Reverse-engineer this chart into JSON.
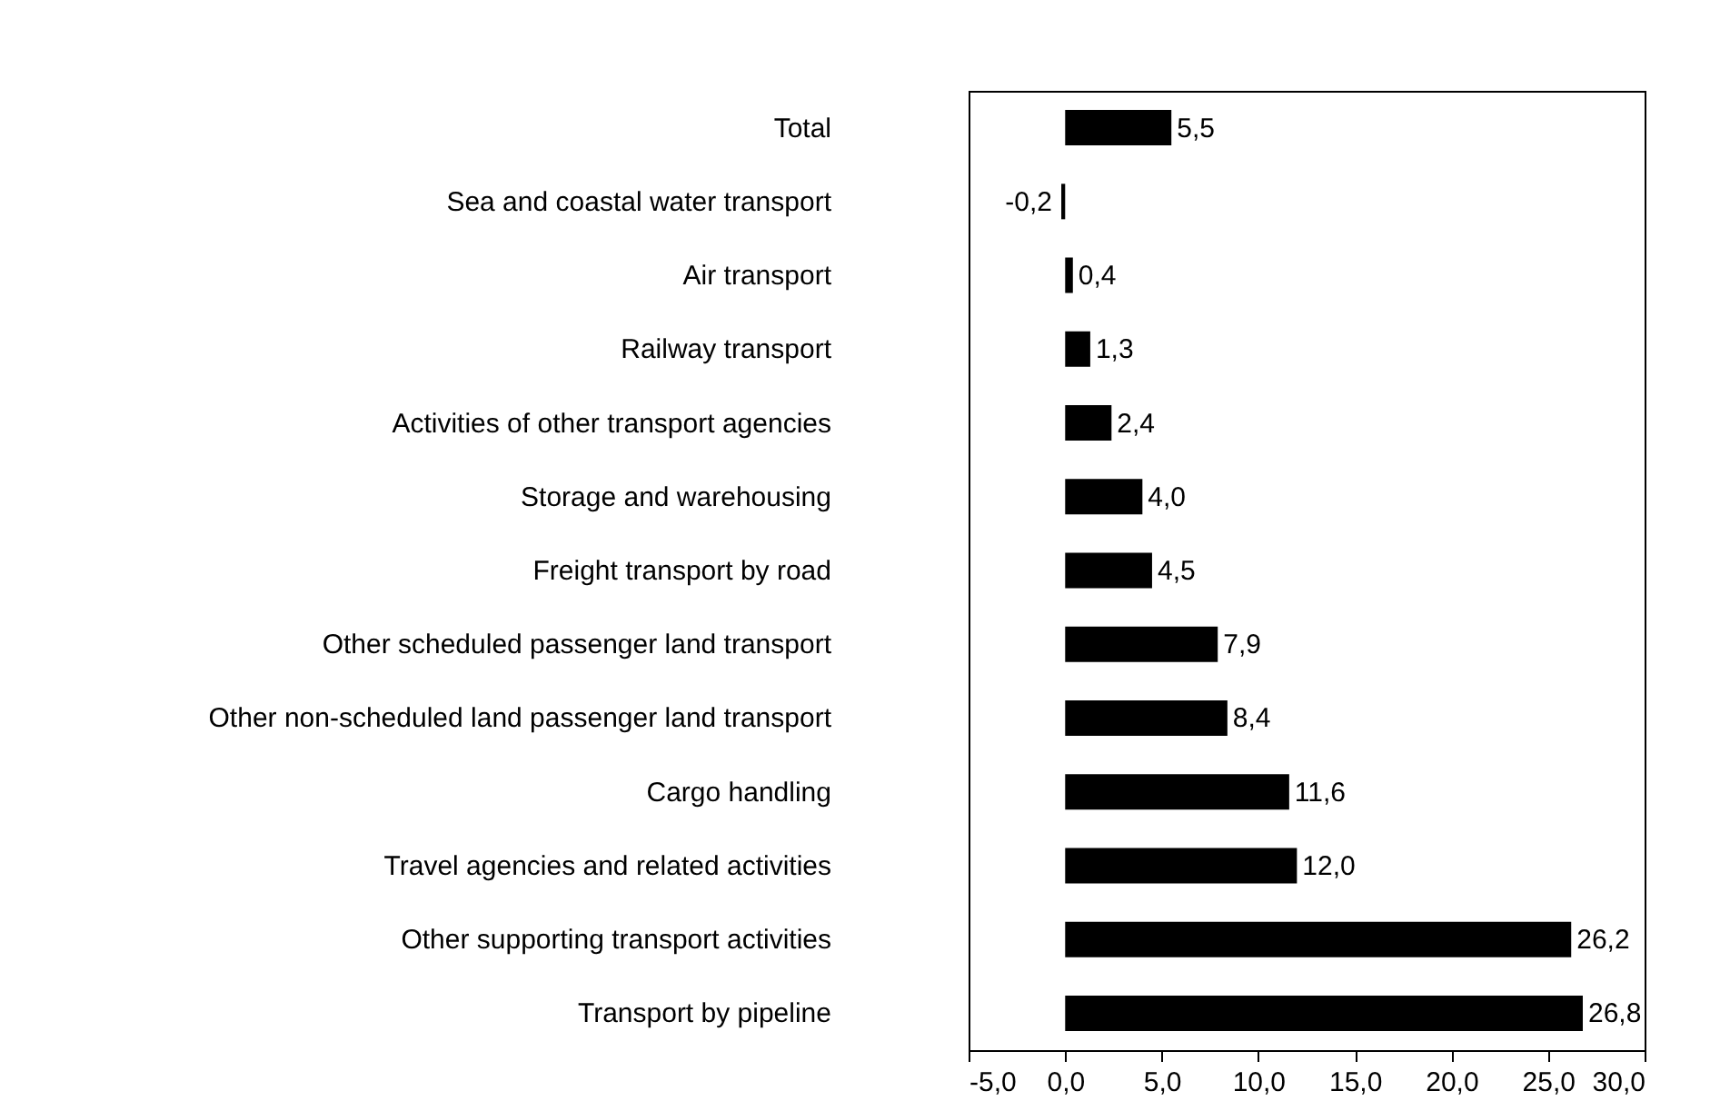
{
  "chart_data": {
    "type": "bar",
    "orientation": "horizontal",
    "categories": [
      "Total",
      "Sea and coastal water transport",
      "Air transport",
      "Railway transport",
      "Activities of other transport agencies",
      "Storage and warehousing",
      "Freight transport by road",
      "Other scheduled passenger land transport",
      "Other non-scheduled land passenger land transport",
      "Cargo handling",
      "Travel agencies and related activities",
      "Other supporting transport activities",
      "Transport by pipeline"
    ],
    "values": [
      5.5,
      -0.2,
      0.4,
      1.3,
      2.4,
      4.0,
      4.5,
      7.9,
      8.4,
      11.6,
      12.0,
      26.2,
      26.8
    ],
    "value_labels": [
      "5,5",
      "-0,2",
      "0,4",
      "1,3",
      "2,4",
      "4,0",
      "4,5",
      "7,9",
      "8,4",
      "11,6",
      "12,0",
      "26,2",
      "26,8"
    ],
    "color": "#000000",
    "xlim": [
      -5,
      30
    ],
    "xticks": [
      {
        "value": -5,
        "label": "-5,0"
      },
      {
        "value": 0,
        "label": "0,0"
      },
      {
        "value": 5,
        "label": "5,0"
      },
      {
        "value": 10,
        "label": "10,0"
      },
      {
        "value": 15,
        "label": "15,0"
      },
      {
        "value": 20,
        "label": "20,0"
      },
      {
        "value": 25,
        "label": "25,0"
      },
      {
        "value": 30,
        "label": "30,0"
      }
    ],
    "grid": false
  }
}
